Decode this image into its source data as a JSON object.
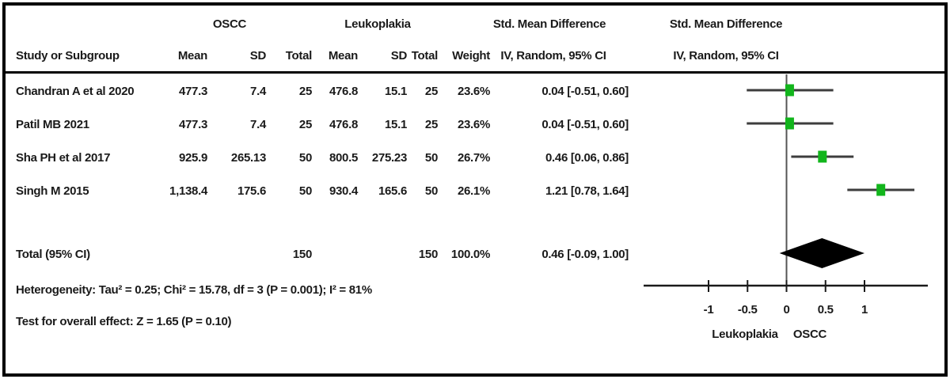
{
  "table": {
    "group_headers": {
      "oscc": "OSCC",
      "leukoplakia": "Leukoplakia"
    },
    "col_headers": {
      "study": "Study or Subgroup",
      "mean1": "Mean",
      "sd1": "SD",
      "total1": "Total",
      "mean2": "Mean",
      "sd2": "SD",
      "total2": "Total",
      "weight": "Weight",
      "smd_title": "Std. Mean Difference",
      "smd_subtitle": "IV, Random, 95% CI",
      "smd_title_plot": "Std. Mean Difference",
      "smd_subtitle_plot": "IV, Random, 95% CI"
    },
    "rows": [
      {
        "study": "Chandran A et al 2020",
        "mean1": "477.3",
        "sd1": "7.4",
        "total1": "25",
        "mean2": "476.8",
        "sd2": "15.1",
        "total2": "25",
        "weight": "23.6%",
        "ci": "0.04 [-0.51, 0.60]"
      },
      {
        "study": "Patil MB 2021",
        "mean1": "477.3",
        "sd1": "7.4",
        "total1": "25",
        "mean2": "476.8",
        "sd2": "15.1",
        "total2": "25",
        "weight": "23.6%",
        "ci": "0.04 [-0.51, 0.60]"
      },
      {
        "study": "Sha PH et al 2017",
        "mean1": "925.9",
        "sd1": "265.13",
        "total1": "50",
        "mean2": "800.5",
        "sd2": "275.23",
        "total2": "50",
        "weight": "26.7%",
        "ci": "0.46 [0.06, 0.86]"
      },
      {
        "study": "Singh M 2015",
        "mean1": "1,138.4",
        "sd1": "175.6",
        "total1": "50",
        "mean2": "930.4",
        "sd2": "165.6",
        "total2": "50",
        "weight": "26.1%",
        "ci": "1.21 [0.78, 1.64]"
      }
    ],
    "total_row": {
      "label": "Total (95% CI)",
      "total1": "150",
      "total2": "150",
      "weight": "100.0%",
      "ci": "0.46 [-0.09, 1.00]"
    },
    "footnotes": {
      "heterogeneity": "Heterogeneity: Tau² = 0.25; Chi² = 15.78, df = 3 (P = 0.001); I² = 81%",
      "overall_effect": "Test for overall effect: Z = 1.65 (P = 0.10)"
    }
  },
  "chart_data": {
    "type": "forest",
    "effect_measure": "Std. Mean Difference",
    "model": "IV, Random, 95% CI",
    "studies": [
      {
        "name": "Chandran A et al 2020",
        "estimate": 0.04,
        "ci_low": -0.51,
        "ci_high": 0.6,
        "weight_pct": 23.6
      },
      {
        "name": "Patil MB 2021",
        "estimate": 0.04,
        "ci_low": -0.51,
        "ci_high": 0.6,
        "weight_pct": 23.6
      },
      {
        "name": "Sha PH et al 2017",
        "estimate": 0.46,
        "ci_low": 0.06,
        "ci_high": 0.86,
        "weight_pct": 26.7
      },
      {
        "name": "Singh M 2015",
        "estimate": 1.21,
        "ci_low": 0.78,
        "ci_high": 1.64,
        "weight_pct": 26.1
      }
    ],
    "total": {
      "label": "Total (95% CI)",
      "estimate": 0.46,
      "ci_low": -0.09,
      "ci_high": 1.0,
      "weight_pct": 100.0
    },
    "x_ticks": [
      {
        "value": -1,
        "label": "-1"
      },
      {
        "value": -0.5,
        "label": "-0.5"
      },
      {
        "value": 0,
        "label": "0"
      },
      {
        "value": 0.5,
        "label": "0.5"
      },
      {
        "value": 1,
        "label": "1"
      }
    ],
    "x_range_shown": [
      -1.85,
      1.8
    ],
    "favours_left_label": "Leukoplakia",
    "favours_right_label": "OSCC",
    "colors": {
      "marker": "#12b51c",
      "ci_line": "#3d3d3d",
      "axis": "#1a1a1a",
      "zero_line": "#555555",
      "diamond": "#000000"
    }
  }
}
